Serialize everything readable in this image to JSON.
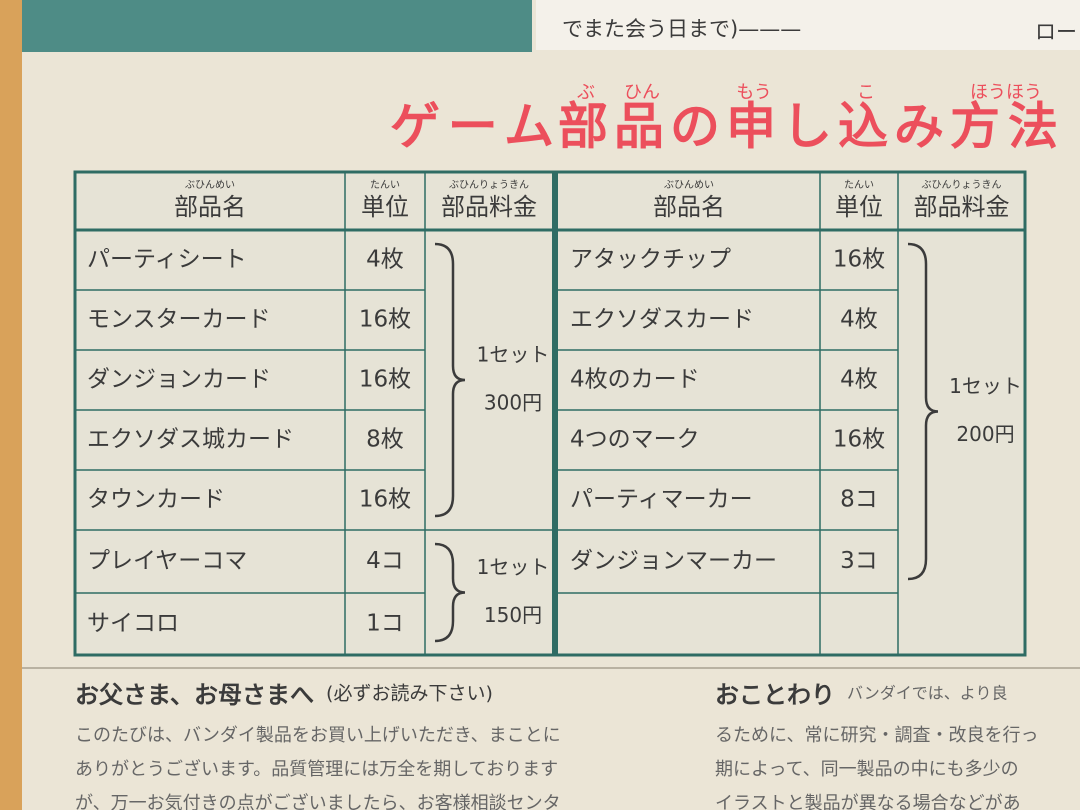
{
  "top_strip": {
    "text": "でまた会う日まで)———",
    "text_right": "ロー"
  },
  "title": [
    {
      "text": "ゲーム"
    },
    {
      "text": "部",
      "ruby": "ぶ"
    },
    {
      "text": "品",
      "ruby": "ひん"
    },
    {
      "text": "の"
    },
    {
      "text": "申",
      "ruby": "もう"
    },
    {
      "text": "し"
    },
    {
      "text": "込",
      "ruby": "こ"
    },
    {
      "text": "み"
    },
    {
      "text": "方法",
      "ruby": "ほうほう"
    }
  ],
  "table": {
    "columns": [
      {
        "text": "部品名",
        "ruby": "ぶひんめい"
      },
      {
        "text": "単位",
        "ruby": "たんい"
      },
      {
        "text": "部品料金",
        "ruby": "ぶひんりょうきん"
      }
    ],
    "left": {
      "rows": [
        [
          "パーティシート",
          "4枚"
        ],
        [
          "モンスターカード",
          "16枚"
        ],
        [
          "ダンジョンカード",
          "16枚"
        ],
        [
          "エクソダス城カード",
          "8枚"
        ],
        [
          "タウンカード",
          "16枚"
        ],
        [
          "プレイヤーコマ",
          "4コ"
        ],
        [
          "サイコロ",
          "1コ"
        ]
      ],
      "groups": [
        {
          "label": "1セット",
          "price": "300円"
        },
        {
          "label": "1セット",
          "price": "150円"
        }
      ]
    },
    "right": {
      "rows": [
        [
          "アタックチップ",
          "16枚"
        ],
        [
          "エクソダスカード",
          "4枚"
        ],
        [
          "4枚のカード",
          "4枚"
        ],
        [
          "4つのマーク",
          "16枚"
        ],
        [
          "パーティマーカー",
          "8コ"
        ],
        [
          "ダンジョンマーカー",
          "3コ"
        ]
      ],
      "groups": [
        {
          "label": "1セット",
          "price": "200円"
        }
      ]
    }
  },
  "notes": [
    {
      "heading": "お父さま、お母さまへ",
      "subheading": "(必ずお読み下さい)",
      "lines": [
        "このたびは、バンダイ製品をお買い上げいただき、まことに",
        "ありがとうございます。品質管理には万全を期しております",
        "が、万一お気付きの点がございましたら、お客様相談センタ"
      ]
    },
    {
      "heading": "おことわり",
      "subheading": "バンダイでは、より良",
      "lines": [
        "るために、常に研究・調査・改良を行っ",
        "期によって、同一製品の中にも多少の",
        "イラストと製品が異なる場合などがあ"
      ]
    }
  ]
}
